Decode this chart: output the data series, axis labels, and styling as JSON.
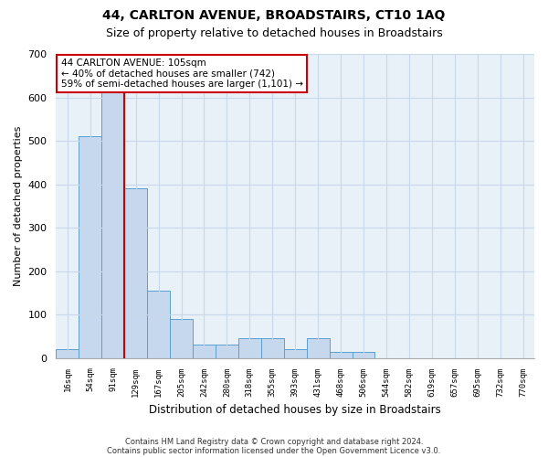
{
  "title": "44, CARLTON AVENUE, BROADSTAIRS, CT10 1AQ",
  "subtitle": "Size of property relative to detached houses in Broadstairs",
  "xlabel": "Distribution of detached houses by size in Broadstairs",
  "ylabel": "Number of detached properties",
  "bar_labels": [
    "16sqm",
    "54sqm",
    "91sqm",
    "129sqm",
    "167sqm",
    "205sqm",
    "242sqm",
    "280sqm",
    "318sqm",
    "355sqm",
    "393sqm",
    "431sqm",
    "468sqm",
    "506sqm",
    "544sqm",
    "582sqm",
    "619sqm",
    "657sqm",
    "695sqm",
    "732sqm",
    "770sqm"
  ],
  "bar_values": [
    20,
    510,
    615,
    390,
    155,
    90,
    30,
    30,
    45,
    45,
    20,
    45,
    15,
    15,
    0,
    0,
    0,
    0,
    0,
    0,
    0
  ],
  "bar_color": "#c5d8ee",
  "bar_edge_color": "#5a9fd4",
  "grid_color": "#c8d8ea",
  "background_color": "#e8f0f8",
  "annotation_text": "44 CARLTON AVENUE: 105sqm\n← 40% of detached houses are smaller (742)\n59% of semi-detached houses are larger (1,101) →",
  "annotation_box_color": "#ffffff",
  "annotation_box_edge_color": "#cc0000",
  "vline_x_index": 2.5,
  "vline_color": "#cc0000",
  "ylim": [
    0,
    700
  ],
  "yticks": [
    0,
    100,
    200,
    300,
    400,
    500,
    600,
    700
  ],
  "title_fontsize": 10,
  "subtitle_fontsize": 9,
  "footnote1": "Contains HM Land Registry data © Crown copyright and database right 2024.",
  "footnote2": "Contains public sector information licensed under the Open Government Licence v3.0."
}
